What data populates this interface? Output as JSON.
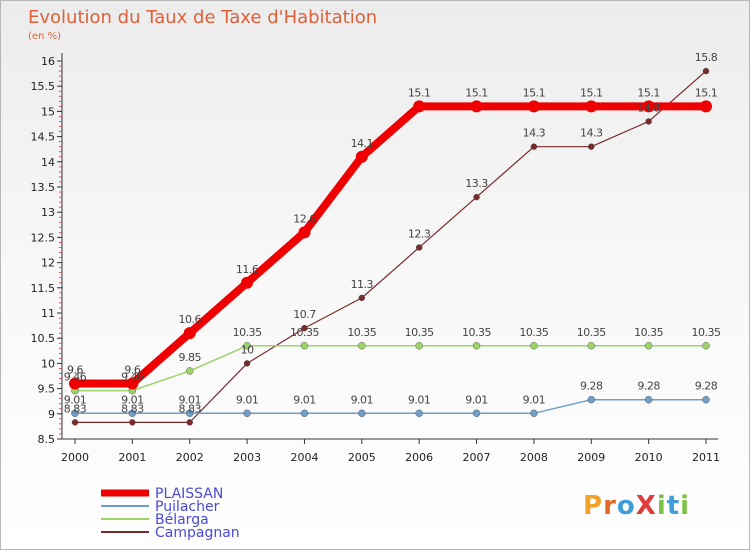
{
  "title": "Evolution du Taux de Taxe d'Habitation",
  "subtitle": "(en %)",
  "logo": {
    "text": "ProXiti",
    "letters": [
      {
        "char": "P",
        "color": "#f2a12a"
      },
      {
        "char": "r",
        "color": "#e06a2a"
      },
      {
        "char": "o",
        "color": "#3f9ed6"
      },
      {
        "char": "X",
        "color": "#e23b3b"
      },
      {
        "char": "i",
        "color": "#7cc24a"
      },
      {
        "char": "t",
        "color": "#3f9ed6"
      },
      {
        "char": "i",
        "color": "#7cc24a"
      }
    ]
  },
  "chart_data": {
    "type": "line",
    "x": [
      "2000",
      "2001",
      "2002",
      "2003",
      "2004",
      "2005",
      "2006",
      "2007",
      "2008",
      "2009",
      "2010",
      "2011"
    ],
    "ylim": [
      8.5,
      16
    ],
    "yticks": [
      "8.5",
      "9",
      "9.5",
      "10",
      "10.5",
      "11",
      "11.5",
      "12",
      "12.5",
      "13",
      "13.5",
      "14",
      "14.5",
      "15",
      "15.5",
      "16"
    ],
    "grid": false,
    "legend_position": "bottom-left",
    "series": [
      {
        "name": "PLAISSAN",
        "color": "#ee0000",
        "width": 8,
        "marker": 6,
        "values": [
          9.6,
          9.6,
          10.6,
          11.6,
          12.6,
          14.1,
          15.1,
          15.1,
          15.1,
          15.1,
          15.1,
          15.1
        ],
        "labels": [
          "9.6",
          "9.6",
          "10.6",
          "11.6",
          "12.6",
          "14.1",
          "15.1",
          "15.1",
          "15.1",
          "15.1",
          "15.1",
          "15.1"
        ]
      },
      {
        "name": "Puilacher",
        "color": "#6f9fc8",
        "width": 1.5,
        "marker": 3.5,
        "values": [
          9.01,
          9.01,
          9.01,
          9.01,
          9.01,
          9.01,
          9.01,
          9.01,
          9.01,
          9.28,
          9.28,
          9.28
        ],
        "labels": [
          "9.01",
          "9.01",
          "9.01",
          "9.01",
          "9.01",
          "9.01",
          "9.01",
          "9.01",
          "9.01",
          "9.28",
          "9.28",
          "9.28"
        ]
      },
      {
        "name": "Bélarga",
        "color": "#9cd46a",
        "width": 1.5,
        "marker": 3.5,
        "values": [
          9.46,
          9.46,
          9.85,
          10.35,
          10.35,
          10.35,
          10.35,
          10.35,
          10.35,
          10.35,
          10.35,
          10.35
        ],
        "labels": [
          "9.46",
          "9.46",
          "9.85",
          "10.35",
          "10.35",
          "10.35",
          "10.35",
          "10.35",
          "10.35",
          "10.35",
          "10.35",
          "10.35"
        ]
      },
      {
        "name": "Campagnan",
        "color": "#7a2a2a",
        "width": 1.2,
        "marker": 3,
        "values": [
          8.83,
          8.83,
          8.83,
          10,
          10.7,
          11.3,
          12.3,
          13.3,
          14.3,
          14.3,
          14.8,
          15.8
        ],
        "labels": [
          "8.83",
          "8.83",
          "8.83",
          "10",
          "10.7",
          "11.3",
          "12.3",
          "13.3",
          "14.3",
          "14.3",
          "14.8",
          "15.8"
        ]
      }
    ]
  }
}
